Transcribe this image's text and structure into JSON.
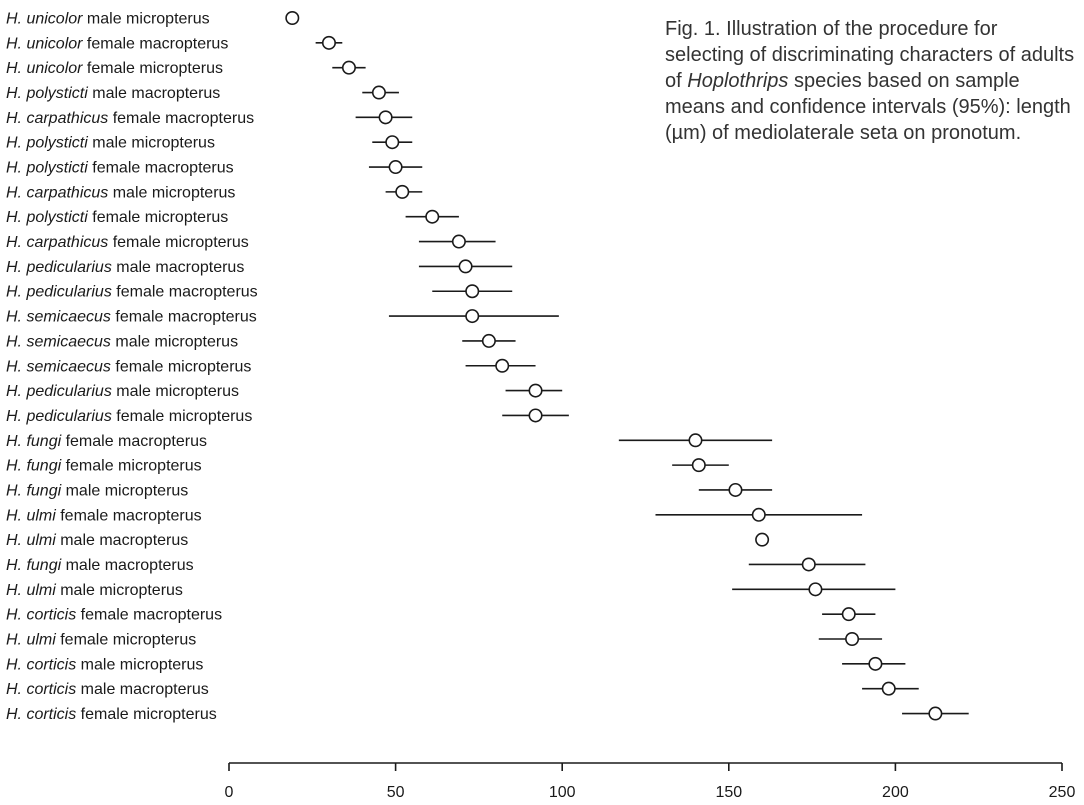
{
  "caption": {
    "prefix": "Fig. 1. Illustration of the procedure for selecting of discriminating characters of adults of ",
    "genus": "Hoplothrips",
    "suffix": " species based on sample means and confidence intervals (95%): length (µm) of mediolaterale seta on pronotum."
  },
  "chart_data": {
    "type": "scatter",
    "title": "",
    "xlabel": "",
    "ylabel": "",
    "xlim": [
      0,
      250
    ],
    "x_ticks": [
      0,
      50,
      100,
      150,
      200,
      250
    ],
    "marker": "open-circle",
    "error_bars": "95% confidence interval",
    "rows": [
      {
        "species": "H. unicolor",
        "desc": "male micropterus",
        "mean": 19,
        "lo": 18,
        "hi": 20
      },
      {
        "species": "H. unicolor",
        "desc": "female macropterus",
        "mean": 30,
        "lo": 26,
        "hi": 34
      },
      {
        "species": "H. unicolor",
        "desc": "female micropterus",
        "mean": 36,
        "lo": 31,
        "hi": 41
      },
      {
        "species": "H. polysticti",
        "desc": "male macropterus",
        "mean": 45,
        "lo": 40,
        "hi": 51
      },
      {
        "species": "H. carpathicus",
        "desc": "female macropterus",
        "mean": 47,
        "lo": 38,
        "hi": 55
      },
      {
        "species": "H. polysticti",
        "desc": "male micropterus",
        "mean": 49,
        "lo": 43,
        "hi": 55
      },
      {
        "species": "H. polysticti",
        "desc": "female macropterus",
        "mean": 50,
        "lo": 42,
        "hi": 58
      },
      {
        "species": "H. carpathicus",
        "desc": "male micropterus",
        "mean": 52,
        "lo": 47,
        "hi": 58
      },
      {
        "species": "H. polysticti",
        "desc": "female micropterus",
        "mean": 61,
        "lo": 53,
        "hi": 69
      },
      {
        "species": "H. carpathicus",
        "desc": "female micropterus",
        "mean": 69,
        "lo": 57,
        "hi": 80
      },
      {
        "species": "H. pedicularius",
        "desc": "male macropterus",
        "mean": 71,
        "lo": 57,
        "hi": 85
      },
      {
        "species": "H. pedicularius",
        "desc": "female macropterus",
        "mean": 73,
        "lo": 61,
        "hi": 85
      },
      {
        "species": "H. semicaecus",
        "desc": "female macropterus",
        "mean": 73,
        "lo": 48,
        "hi": 99
      },
      {
        "species": "H. semicaecus",
        "desc": "male micropterus",
        "mean": 78,
        "lo": 70,
        "hi": 86
      },
      {
        "species": "H. semicaecus",
        "desc": "female micropterus",
        "mean": 82,
        "lo": 71,
        "hi": 92
      },
      {
        "species": "H. pedicularius",
        "desc": "male micropterus",
        "mean": 92,
        "lo": 83,
        "hi": 100
      },
      {
        "species": "H. pedicularius",
        "desc": "female micropterus",
        "mean": 92,
        "lo": 82,
        "hi": 102
      },
      {
        "species": "H. fungi",
        "desc": "female macropterus",
        "mean": 140,
        "lo": 117,
        "hi": 163
      },
      {
        "species": "H. fungi",
        "desc": "female micropterus",
        "mean": 141,
        "lo": 133,
        "hi": 150
      },
      {
        "species": "H. fungi",
        "desc": "male micropterus",
        "mean": 152,
        "lo": 141,
        "hi": 163
      },
      {
        "species": "H. ulmi",
        "desc": "female macropterus",
        "mean": 159,
        "lo": 128,
        "hi": 190
      },
      {
        "species": "H. ulmi",
        "desc": "male macropterus",
        "mean": 160,
        "lo": 160,
        "hi": 160
      },
      {
        "species": "H. fungi",
        "desc": "male macropterus",
        "mean": 174,
        "lo": 156,
        "hi": 191
      },
      {
        "species": "H. ulmi",
        "desc": "male micropterus",
        "mean": 176,
        "lo": 151,
        "hi": 200
      },
      {
        "species": "H. corticis",
        "desc": "female macropterus",
        "mean": 186,
        "lo": 178,
        "hi": 194
      },
      {
        "species": "H. ulmi",
        "desc": "female micropterus",
        "mean": 187,
        "lo": 177,
        "hi": 196
      },
      {
        "species": "H. corticis",
        "desc": "male micropterus",
        "mean": 194,
        "lo": 184,
        "hi": 203
      },
      {
        "species": "H. corticis",
        "desc": "male macropterus",
        "mean": 198,
        "lo": 190,
        "hi": 207
      },
      {
        "species": "H. corticis",
        "desc": "female micropterus",
        "mean": 212,
        "lo": 202,
        "hi": 222
      }
    ]
  }
}
